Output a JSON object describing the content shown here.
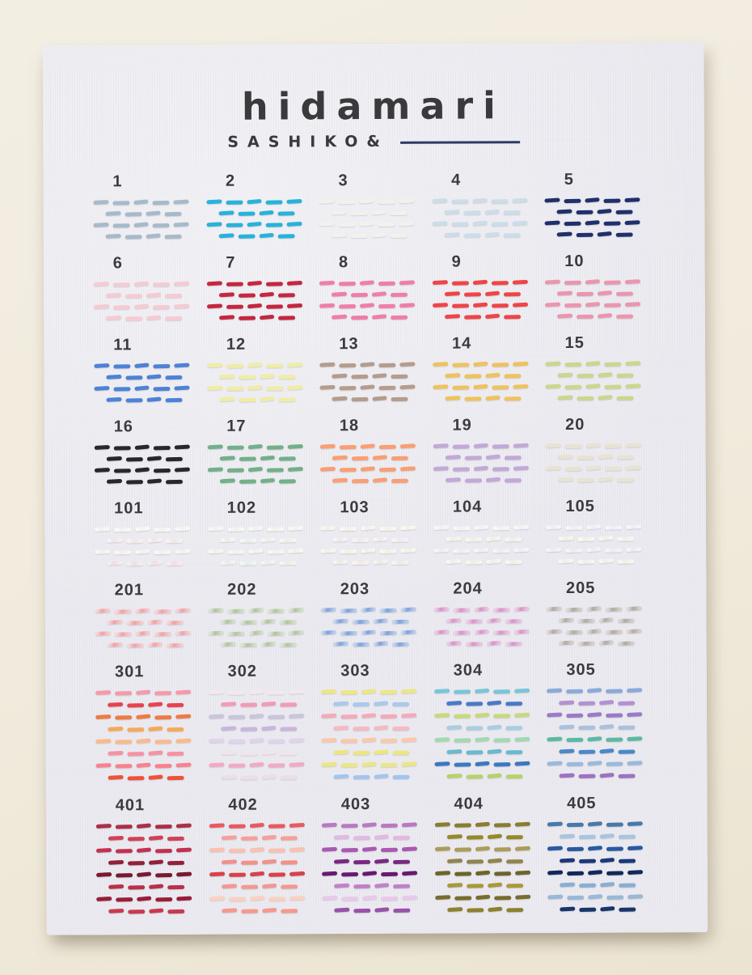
{
  "photo": {
    "background_color": "#f1ecdf",
    "fabric_color": "#ebeaf0"
  },
  "brand": {
    "name": "hidamari",
    "subtitle": "SASHIKO&",
    "text_color": "#3a3a3c",
    "underline_color": "#2d3a66"
  },
  "swatches": [
    {
      "number": "1",
      "rows": 4,
      "sparkle": false,
      "colors": [
        "#a7bac9"
      ]
    },
    {
      "number": "2",
      "rows": 4,
      "sparkle": false,
      "colors": [
        "#27b3da"
      ]
    },
    {
      "number": "3",
      "rows": 4,
      "sparkle": false,
      "colors": [
        "#f2f1ec"
      ]
    },
    {
      "number": "4",
      "rows": 4,
      "sparkle": false,
      "colors": [
        "#ccdde8"
      ]
    },
    {
      "number": "5",
      "rows": 4,
      "sparkle": false,
      "colors": [
        "#20306a"
      ]
    },
    {
      "number": "6",
      "rows": 4,
      "sparkle": false,
      "colors": [
        "#f5cbd3"
      ]
    },
    {
      "number": "7",
      "rows": 4,
      "sparkle": false,
      "colors": [
        "#c52740"
      ]
    },
    {
      "number": "8",
      "rows": 4,
      "sparkle": false,
      "colors": [
        "#f07ea6"
      ]
    },
    {
      "number": "9",
      "rows": 4,
      "sparkle": false,
      "colors": [
        "#ef4547"
      ]
    },
    {
      "number": "10",
      "rows": 4,
      "sparkle": false,
      "colors": [
        "#eb96ad"
      ]
    },
    {
      "number": "11",
      "rows": 4,
      "sparkle": false,
      "colors": [
        "#4d82d6"
      ]
    },
    {
      "number": "12",
      "rows": 4,
      "sparkle": false,
      "colors": [
        "#efeda6"
      ]
    },
    {
      "number": "13",
      "rows": 4,
      "sparkle": false,
      "colors": [
        "#b59c8b"
      ]
    },
    {
      "number": "14",
      "rows": 4,
      "sparkle": false,
      "colors": [
        "#eec35e"
      ]
    },
    {
      "number": "15",
      "rows": 4,
      "sparkle": false,
      "colors": [
        "#ccd68d"
      ]
    },
    {
      "number": "16",
      "rows": 4,
      "sparkle": false,
      "colors": [
        "#28282a"
      ]
    },
    {
      "number": "17",
      "rows": 4,
      "sparkle": false,
      "colors": [
        "#72b089"
      ]
    },
    {
      "number": "18",
      "rows": 4,
      "sparkle": false,
      "colors": [
        "#f99f74"
      ]
    },
    {
      "number": "19",
      "rows": 4,
      "sparkle": false,
      "colors": [
        "#c2a9d6"
      ]
    },
    {
      "number": "20",
      "rows": 4,
      "sparkle": false,
      "colors": [
        "#e8e3d2"
      ]
    },
    {
      "number": "101",
      "rows": 4,
      "sparkle": true,
      "colors": [
        "#f4f2f0",
        "#f2e4e6",
        "#f5eeec",
        "#f0dce2"
      ]
    },
    {
      "number": "102",
      "rows": 4,
      "sparkle": true,
      "colors": [
        "#f0f2ec",
        "#e8f0e6",
        "#f2f0ea",
        "#e6eee4"
      ]
    },
    {
      "number": "103",
      "rows": 4,
      "sparkle": true,
      "colors": [
        "#f4f0e4",
        "#f2e8ea",
        "#f4efe2",
        "#efe9e2"
      ]
    },
    {
      "number": "104",
      "rows": 4,
      "sparkle": true,
      "colors": [
        "#eef2f0",
        "#ecf0e2",
        "#eaeef2",
        "#f0eee4"
      ]
    },
    {
      "number": "105",
      "rows": 4,
      "sparkle": true,
      "colors": [
        "#eceef4",
        "#f2efe2",
        "#e8ecf2",
        "#f0efe8"
      ]
    },
    {
      "number": "201",
      "rows": 4,
      "sparkle": true,
      "colors": [
        "#eda2a6"
      ]
    },
    {
      "number": "202",
      "rows": 4,
      "sparkle": true,
      "colors": [
        "#b0c49e"
      ]
    },
    {
      "number": "203",
      "rows": 4,
      "sparkle": true,
      "colors": [
        "#7ea2d8"
      ]
    },
    {
      "number": "204",
      "rows": 4,
      "sparkle": true,
      "colors": [
        "#d893c8"
      ]
    },
    {
      "number": "205",
      "rows": 4,
      "sparkle": true,
      "colors": [
        "#b2aaa2"
      ]
    },
    {
      "number": "301",
      "rows": 8,
      "sparkle": false,
      "colors": [
        "#f59aa8",
        "#e8434e",
        "#f07a42",
        "#f5a95a",
        "#f8bb8e",
        "#f593a2",
        "#f8828e",
        "#ee5239"
      ]
    },
    {
      "number": "302",
      "rows": 8,
      "sparkle": false,
      "colors": [
        "#f2e9ee",
        "#f49ab6",
        "#c9c5dd",
        "#c9b6dd",
        "#e2d2ea",
        "#f1e5ed",
        "#f2aac6",
        "#eadeea"
      ]
    },
    {
      "number": "303",
      "rows": 8,
      "sparkle": false,
      "colors": [
        "#ebe785",
        "#aac9ed",
        "#f5aab9",
        "#f5bac2",
        "#f9c9aa",
        "#ebe77e",
        "#ebe782",
        "#a2c5ed"
      ]
    },
    {
      "number": "304",
      "rows": 8,
      "sparkle": false,
      "colors": [
        "#7ac5d9",
        "#4a79c9",
        "#c9d97a",
        "#aacde1",
        "#a2d9b2",
        "#6ab9cd",
        "#3a79c1",
        "#b9d16a"
      ]
    },
    {
      "number": "305",
      "rows": 8,
      "sparkle": false,
      "colors": [
        "#8aaad9",
        "#b292d1",
        "#9a7ac9",
        "#aac1dd",
        "#5ab9a2",
        "#4a89c9",
        "#9ab9dd",
        "#9e72c1"
      ]
    },
    {
      "number": "401",
      "rows": 8,
      "sparkle": false,
      "colors": [
        "#a93149",
        "#d14159",
        "#c13151",
        "#912139",
        "#791931",
        "#b93149",
        "#991d39",
        "#c93951"
      ]
    },
    {
      "number": "402",
      "rows": 8,
      "sparkle": false,
      "colors": [
        "#e95961",
        "#f5a199",
        "#f9c1b1",
        "#f19189",
        "#d94149",
        "#f19991",
        "#f9d1c1",
        "#f5998d"
      ]
    },
    {
      "number": "403",
      "rows": 8,
      "sparkle": false,
      "colors": [
        "#b979c1",
        "#e1b9e1",
        "#a959b1",
        "#792981",
        "#691971",
        "#c181c9",
        "#e9c9e9",
        "#9951a9"
      ]
    },
    {
      "number": "404",
      "rows": 8,
      "sparkle": false,
      "colors": [
        "#897d31",
        "#958929",
        "#a99d59",
        "#91854d",
        "#6d6529",
        "#a99939",
        "#796d2d",
        "#8d8131"
      ]
    },
    {
      "number": "405",
      "rows": 8,
      "sparkle": false,
      "colors": [
        "#4979a9",
        "#a9c5dd",
        "#2959a1",
        "#1d3979",
        "#112959",
        "#89afd1",
        "#99b9d5",
        "#193569"
      ]
    }
  ]
}
